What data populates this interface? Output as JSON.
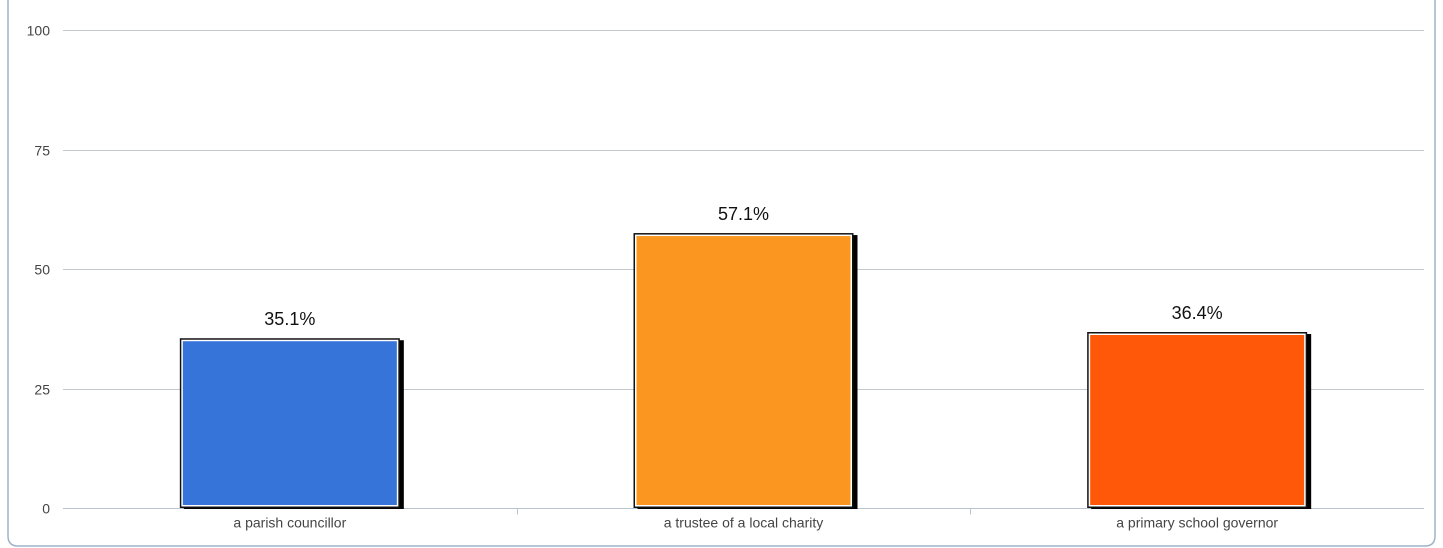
{
  "chart_data": {
    "type": "bar",
    "categories": [
      "a parish councillor",
      "a trustee of a local charity",
      "a primary school governor"
    ],
    "values": [
      35.1,
      57.1,
      36.4
    ],
    "data_labels": [
      "35.1%",
      "57.1%",
      "36.4%"
    ],
    "bar_colors": [
      "#3674d9",
      "#fb9721",
      "#fe5808"
    ],
    "ylim": [
      0,
      100
    ],
    "yticks": [
      0,
      25,
      50,
      75,
      100
    ],
    "ytick_labels": [
      "0",
      "25",
      "50",
      "75",
      "100"
    ],
    "grid": true,
    "legend": "none",
    "title": "",
    "xlabel": "",
    "ylabel": ""
  },
  "style": {
    "frame_color": "#9fb4c7",
    "grid_color": "#c0c8d0",
    "axis_color": "#b8c4d0"
  }
}
